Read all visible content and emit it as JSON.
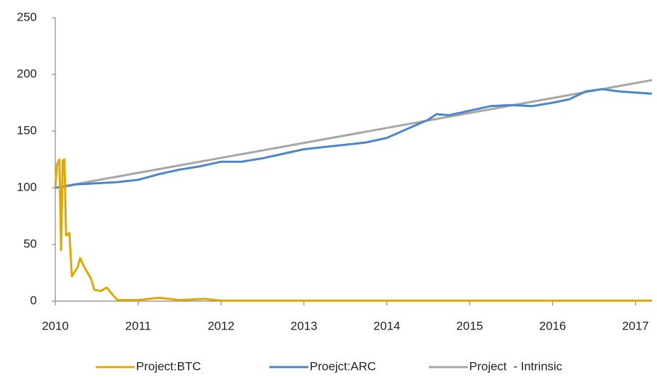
{
  "chart_data": {
    "type": "line",
    "xlim": [
      2010,
      2017.2
    ],
    "xticks": [
      2010,
      2011,
      2012,
      2013,
      2014,
      2015,
      2016,
      2017
    ],
    "ylim": [
      0,
      250
    ],
    "yticks": [
      0,
      50,
      100,
      150,
      200,
      250
    ],
    "grid": false,
    "legend": "bottom",
    "series": [
      {
        "name": "Project:BTC",
        "color": "#e0a800",
        "x": [
          2010,
          2010.02,
          2010.05,
          2010.07,
          2010.09,
          2010.11,
          2010.13,
          2010.17,
          2010.2,
          2010.27,
          2010.3,
          2010.35,
          2010.43,
          2010.47,
          2010.55,
          2010.62,
          2010.7,
          2010.75,
          2011,
          2011.25,
          2011.5,
          2011.8,
          2012,
          2017.2
        ],
        "values": [
          100,
          120,
          125,
          45,
          124,
          125,
          58,
          60,
          22,
          30,
          38,
          30,
          20,
          10,
          9,
          12,
          5,
          1,
          1,
          3,
          1,
          2,
          0.5,
          0.5
        ]
      },
      {
        "name": "Proejct:ARC",
        "color": "#4a86c8",
        "x": [
          2010,
          2010.1,
          2010.25,
          2010.5,
          2010.75,
          2011,
          2011.25,
          2011.5,
          2011.75,
          2012,
          2012.25,
          2012.5,
          2012.75,
          2013,
          2013.25,
          2013.5,
          2013.75,
          2014,
          2014.25,
          2014.5,
          2014.6,
          2014.75,
          2015,
          2015.25,
          2015.5,
          2015.75,
          2016,
          2016.2,
          2016.4,
          2016.6,
          2016.8,
          2017,
          2017.2
        ],
        "values": [
          100,
          101,
          103,
          104,
          105,
          107,
          112,
          116,
          119,
          123,
          123,
          126,
          130,
          134,
          136,
          138,
          140,
          144,
          152,
          160,
          165,
          164,
          168,
          172,
          173,
          172,
          175,
          178,
          185,
          187,
          185,
          184,
          183
        ]
      },
      {
        "name": "Project  - Intrinsic",
        "color": "#a6a6a6",
        "x": [
          2010,
          2017.2
        ],
        "values": [
          100,
          195
        ]
      }
    ]
  }
}
